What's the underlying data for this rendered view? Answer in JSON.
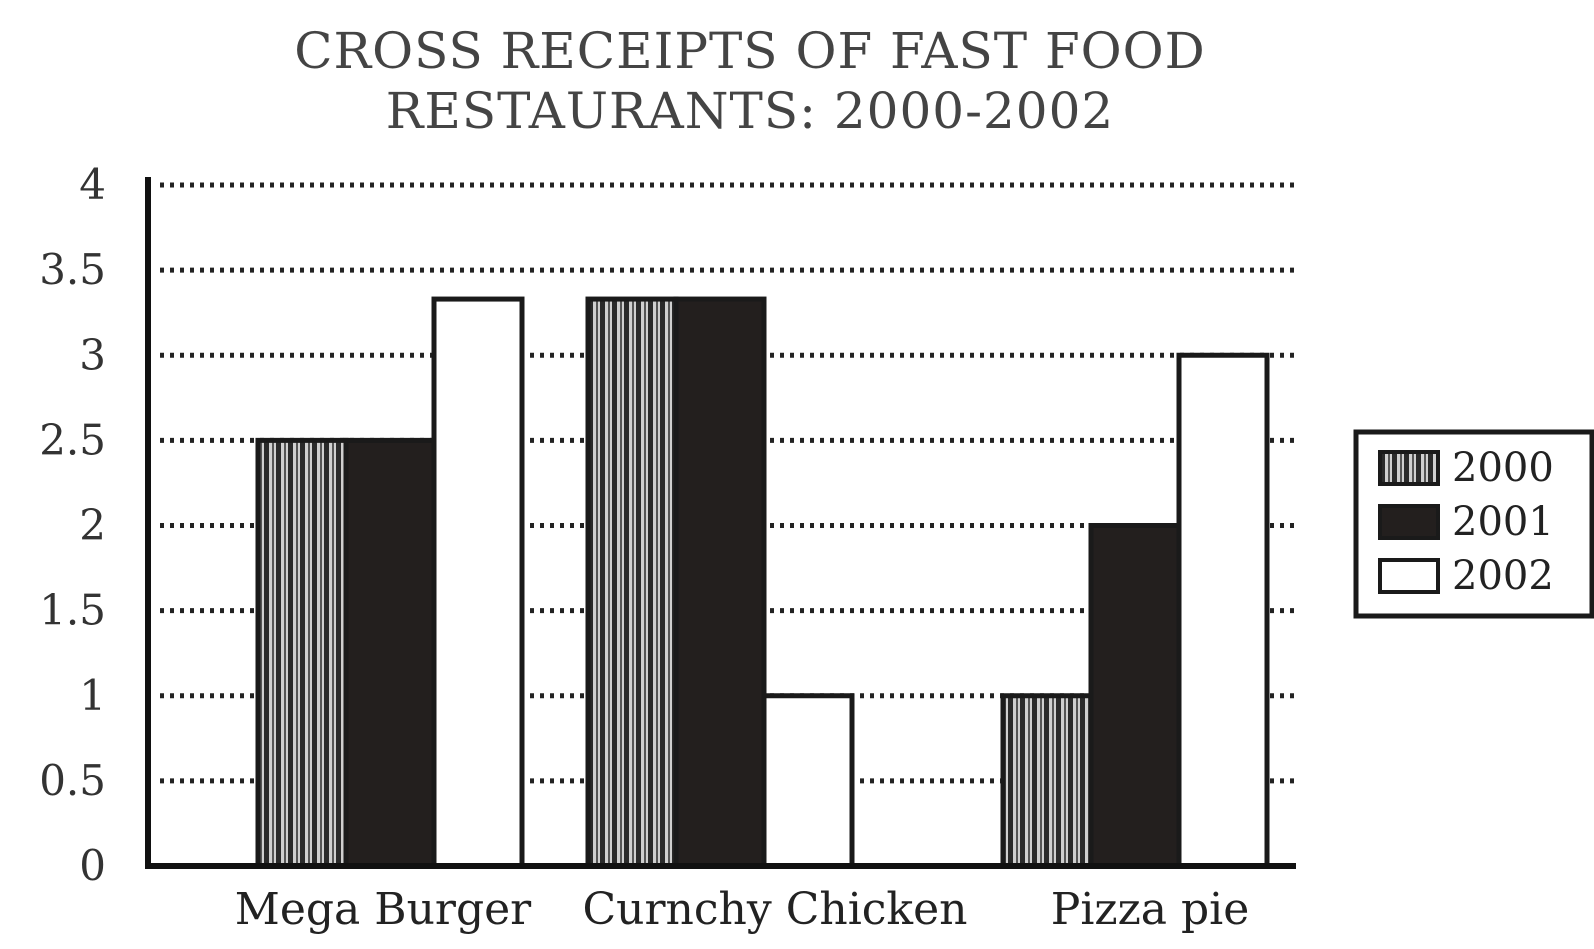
{
  "chart_data": {
    "type": "bar",
    "title_lines": [
      "CROSS RECEIPTS OF FAST FOOD",
      "RESTAURANTS: 2000-2002"
    ],
    "xlabel": "",
    "ylabel": "",
    "categories": [
      "Mega Burger",
      "Curnchy Chicken",
      "Pizza pie"
    ],
    "series": [
      {
        "name": "2000",
        "values": [
          2.5,
          3.33,
          1
        ],
        "pattern": "vertical-stripes"
      },
      {
        "name": "2001",
        "values": [
          2.5,
          3.33,
          2
        ],
        "pattern": "solid-black"
      },
      {
        "name": "2002",
        "values": [
          3.33,
          1,
          3
        ],
        "pattern": "white"
      }
    ],
    "yticks": [
      "0",
      "0.5",
      "1",
      "1.5",
      "2",
      "2.5",
      "3",
      "3.5",
      "4"
    ],
    "ylim": [
      0,
      4
    ],
    "grid": true,
    "grid_style": "dotted",
    "legend_position": "right",
    "colors": {
      "bar_outline": "#1a1a1a",
      "solid_fill": "#231f1e",
      "stripe_dark": "#2a2a2a",
      "stripe_light": "#c8c8c8",
      "white_fill": "#ffffff",
      "grid": "#222222",
      "axis": "#111111"
    }
  }
}
